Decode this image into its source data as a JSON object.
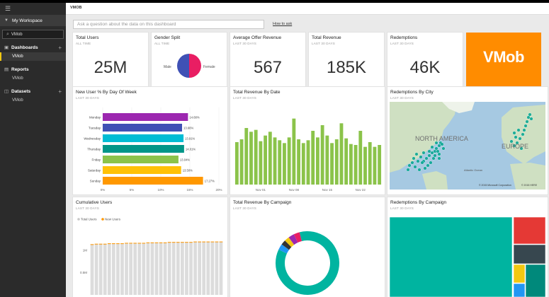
{
  "nav": {
    "menu_icon": "hamburger-icon",
    "workspace_label": "My Workspace",
    "search_value": "VMob",
    "dashboards": {
      "label": "Dashboards",
      "items": [
        "VMob"
      ]
    },
    "reports": {
      "label": "Reports",
      "items": [
        "VMob"
      ]
    },
    "datasets": {
      "label": "Datasets",
      "items": [
        "VMob"
      ]
    }
  },
  "header": {
    "title": "VMOB"
  },
  "qa": {
    "placeholder": "Ask a question about the data on this dashboard",
    "how_to": "How to ask"
  },
  "tiles": {
    "total_users": {
      "title": "Total Users",
      "sub": "ALL TIME",
      "value": "25M"
    },
    "gender": {
      "title": "Gender Split",
      "sub": "ALL TIME",
      "male": "Male",
      "female": "Female"
    },
    "avg_offer": {
      "title": "Average Offer Revenue",
      "sub": "LAST 30 DAYS",
      "value": "567"
    },
    "total_rev": {
      "title": "Total Revenue",
      "sub": "LAST 30 DAYS",
      "value": "185K"
    },
    "redemptions": {
      "title": "Redemptions",
      "sub": "LAST 30 DAYS",
      "value": "46K"
    },
    "logo": {
      "text": "VMob"
    },
    "new_user_dow": {
      "title": "New User % By Day Of Week",
      "sub": "LAST 30 DAYS"
    },
    "rev_by_date": {
      "title": "Total Revenue By Date",
      "sub": "LAST 30 DAYS"
    },
    "red_by_city": {
      "title": "Redemptions By City",
      "sub": "LAST 30 DAYS",
      "labels": {
        "north_america": "NORTH AMERICA",
        "europe": "EUROPE",
        "atlantic": "Atlantic Ocean"
      },
      "copyright1": "© 2015 Microsoft Corporation",
      "copyright2": "© 2015 HERE"
    },
    "cumulative": {
      "title": "Cumulative Users",
      "sub": "LAST 30 DAYS"
    },
    "rev_by_campaign": {
      "title": "Total Revenue By Campaign",
      "sub": "LAST 30 DAYS"
    },
    "red_by_campaign": {
      "title": "Redemptions By Campaign",
      "sub": "LAST 30 DAYS"
    }
  },
  "colors": {
    "accent": "#f2c811",
    "logo_bg": "#ff8c00",
    "male": "#3f51b5",
    "female": "#e91e63",
    "green": "#8bc34a",
    "teal": "#00b0a0"
  },
  "chart_data": [
    {
      "type": "pie",
      "id": "gender",
      "slices": [
        {
          "label": "Male",
          "value": 50,
          "color": "#3f51b5"
        },
        {
          "label": "Female",
          "value": 50,
          "color": "#e91e63"
        }
      ]
    },
    {
      "type": "bar",
      "id": "dow",
      "categories": [
        "Monday",
        "Tuesday",
        "Wednesday",
        "Thursday",
        "Friday",
        "Saturday",
        "Sunday"
      ],
      "values": [
        14.68,
        13.66,
        13.91,
        14.01,
        13.04,
        13.5,
        17.27
      ],
      "labels": [
        "14.68%",
        "13.66%",
        "13.91%",
        "14.01%",
        "13.04%",
        "13.50%",
        "17.27%"
      ],
      "colors": [
        "#9c27b0",
        "#3f51b5",
        "#00bcd4",
        "#009688",
        "#8bc34a",
        "#ffc107",
        "#ff9800"
      ],
      "xticks": [
        "0%",
        "5%",
        "10%",
        "15%",
        "20%"
      ],
      "xlim": [
        0,
        20
      ]
    },
    {
      "type": "bar",
      "id": "rev_date",
      "values": [
        45,
        48,
        60,
        56,
        58,
        46,
        52,
        56,
        50,
        47,
        44,
        50,
        70,
        48,
        44,
        47,
        57,
        50,
        63,
        52,
        44,
        48,
        65,
        49,
        43,
        42,
        57,
        40,
        45,
        40,
        42
      ],
      "xticks": [
        "Nov 01",
        "Nov 08",
        "Nov 15",
        "Nov 22"
      ],
      "xtick_index": [
        5,
        12,
        19,
        26
      ],
      "ylim": [
        0,
        75
      ]
    },
    {
      "type": "bar",
      "id": "cumulative",
      "legend": [
        "Total Users",
        "New Users"
      ],
      "legend_colors": [
        "#c8c8c8",
        "#ff9800"
      ],
      "values": [
        1.14,
        1.15,
        1.15,
        1.15,
        1.16,
        1.16,
        1.16,
        1.16,
        1.17,
        1.17,
        1.17,
        1.17,
        1.17,
        1.18,
        1.18,
        1.18,
        1.18,
        1.18,
        1.19,
        1.19,
        1.19,
        1.19,
        1.19,
        1.19,
        1.2,
        1.2,
        1.2,
        1.2,
        1.2,
        1.2,
        1.2
      ],
      "yticks": [
        "0.5M",
        "1M"
      ],
      "ytick_values": [
        0.5,
        1.0
      ],
      "ylim": [
        0,
        1.4
      ]
    },
    {
      "type": "pie",
      "id": "campaign_donut",
      "slices": [
        {
          "value": 86,
          "color": "#00b4a0"
        },
        {
          "value": 3,
          "color": "#2196f3"
        },
        {
          "value": 2.5,
          "color": "#333333"
        },
        {
          "value": 2.5,
          "color": "#f2c811"
        },
        {
          "value": 3,
          "color": "#9c27b0"
        },
        {
          "value": 3,
          "color": "#e91e63"
        }
      ]
    },
    {
      "type": "heatmap",
      "id": "treemap",
      "cells": [
        {
          "color": "#00b4a0"
        },
        {
          "color": "#e53935"
        },
        {
          "color": "#37474f"
        },
        {
          "color": "#f2c811"
        },
        {
          "color": "#2196f3"
        },
        {
          "color": "#00897b"
        }
      ]
    }
  ]
}
